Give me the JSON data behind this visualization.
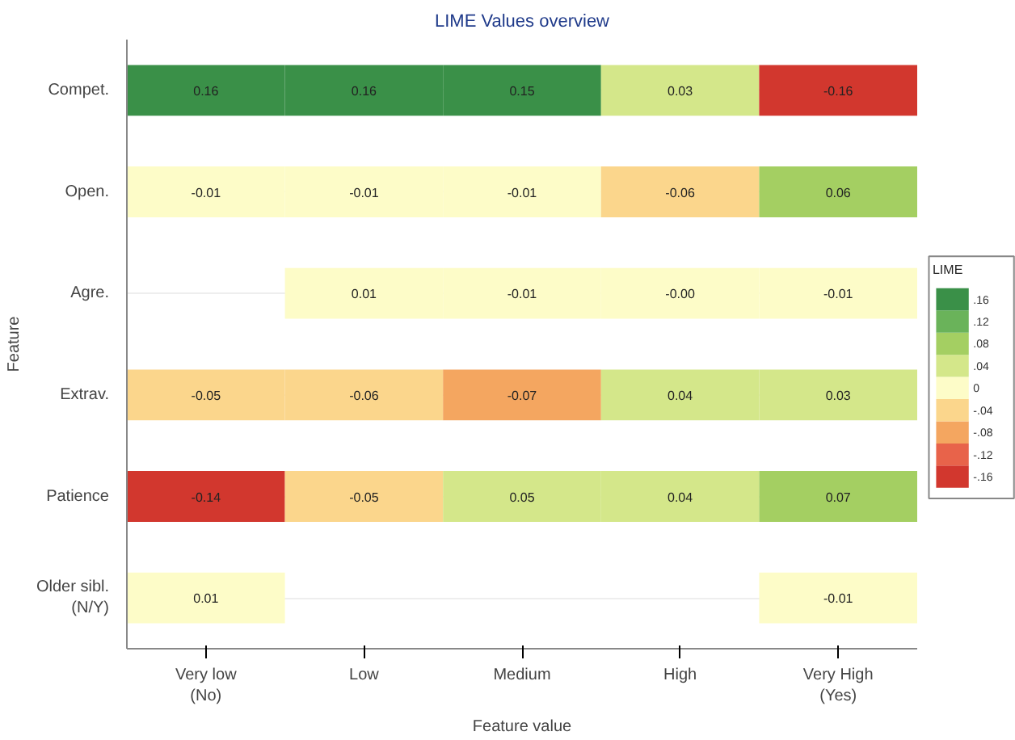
{
  "chart_data": {
    "type": "heatmap",
    "title": "LIME Values overview",
    "xlabel": "Feature value",
    "ylabel": "Feature",
    "clabel": "LIME",
    "categories": [
      "Very low\n(No)",
      "Low",
      "Medium",
      "High",
      "Very High\n(Yes)"
    ],
    "y_categories": [
      "Compet.",
      "Open.",
      "Agre.",
      "Extrav.",
      "Patience",
      "Older sibl.\n(N/Y)"
    ],
    "cells": [
      [
        0.16,
        0.16,
        0.15,
        0.03,
        -0.16
      ],
      [
        -0.01,
        -0.01,
        -0.01,
        -0.06,
        0.06
      ],
      [
        null,
        0.01,
        -0.01,
        0.0,
        -0.01
      ],
      [
        -0.05,
        -0.06,
        -0.07,
        0.04,
        0.03
      ],
      [
        -0.14,
        -0.05,
        0.05,
        0.04,
        0.07
      ],
      [
        0.01,
        null,
        null,
        null,
        -0.01
      ]
    ],
    "cell_labels": [
      [
        "0.16",
        "0.16",
        "0.15",
        "0.03",
        "-0.16"
      ],
      [
        "-0.01",
        "-0.01",
        "-0.01",
        "-0.06",
        "0.06"
      ],
      [
        null,
        "0.01",
        "-0.01",
        "-0.00",
        "-0.01"
      ],
      [
        "-0.05",
        "-0.06",
        "-0.07",
        "0.04",
        "0.03"
      ],
      [
        "-0.14",
        "-0.05",
        "0.05",
        "0.04",
        "0.07"
      ],
      [
        "0.01",
        null,
        null,
        null,
        "-0.01"
      ]
    ],
    "colors": [
      "#d2372e",
      "#e8634a",
      "#f4a660",
      "#fbd68c",
      "#fdfcc8",
      "#d4e78a",
      "#a4cf62",
      "#6ab35a",
      "#3a9048"
    ],
    "clim": [
      -0.18,
      0.18
    ],
    "cticks": [
      {
        "value": 0.16,
        "label": ".16"
      },
      {
        "value": 0.12,
        "label": ".12"
      },
      {
        "value": 0.08,
        "label": ".08"
      },
      {
        "value": 0.04,
        "label": ".04"
      },
      0,
      {
        "value": -0.04,
        "label": "-.04"
      },
      {
        "value": -0.08,
        "label": "-.08"
      },
      {
        "value": -0.12,
        "label": "-.12"
      },
      {
        "value": -0.16,
        "label": "-.16"
      }
    ],
    "grid": "y"
  }
}
